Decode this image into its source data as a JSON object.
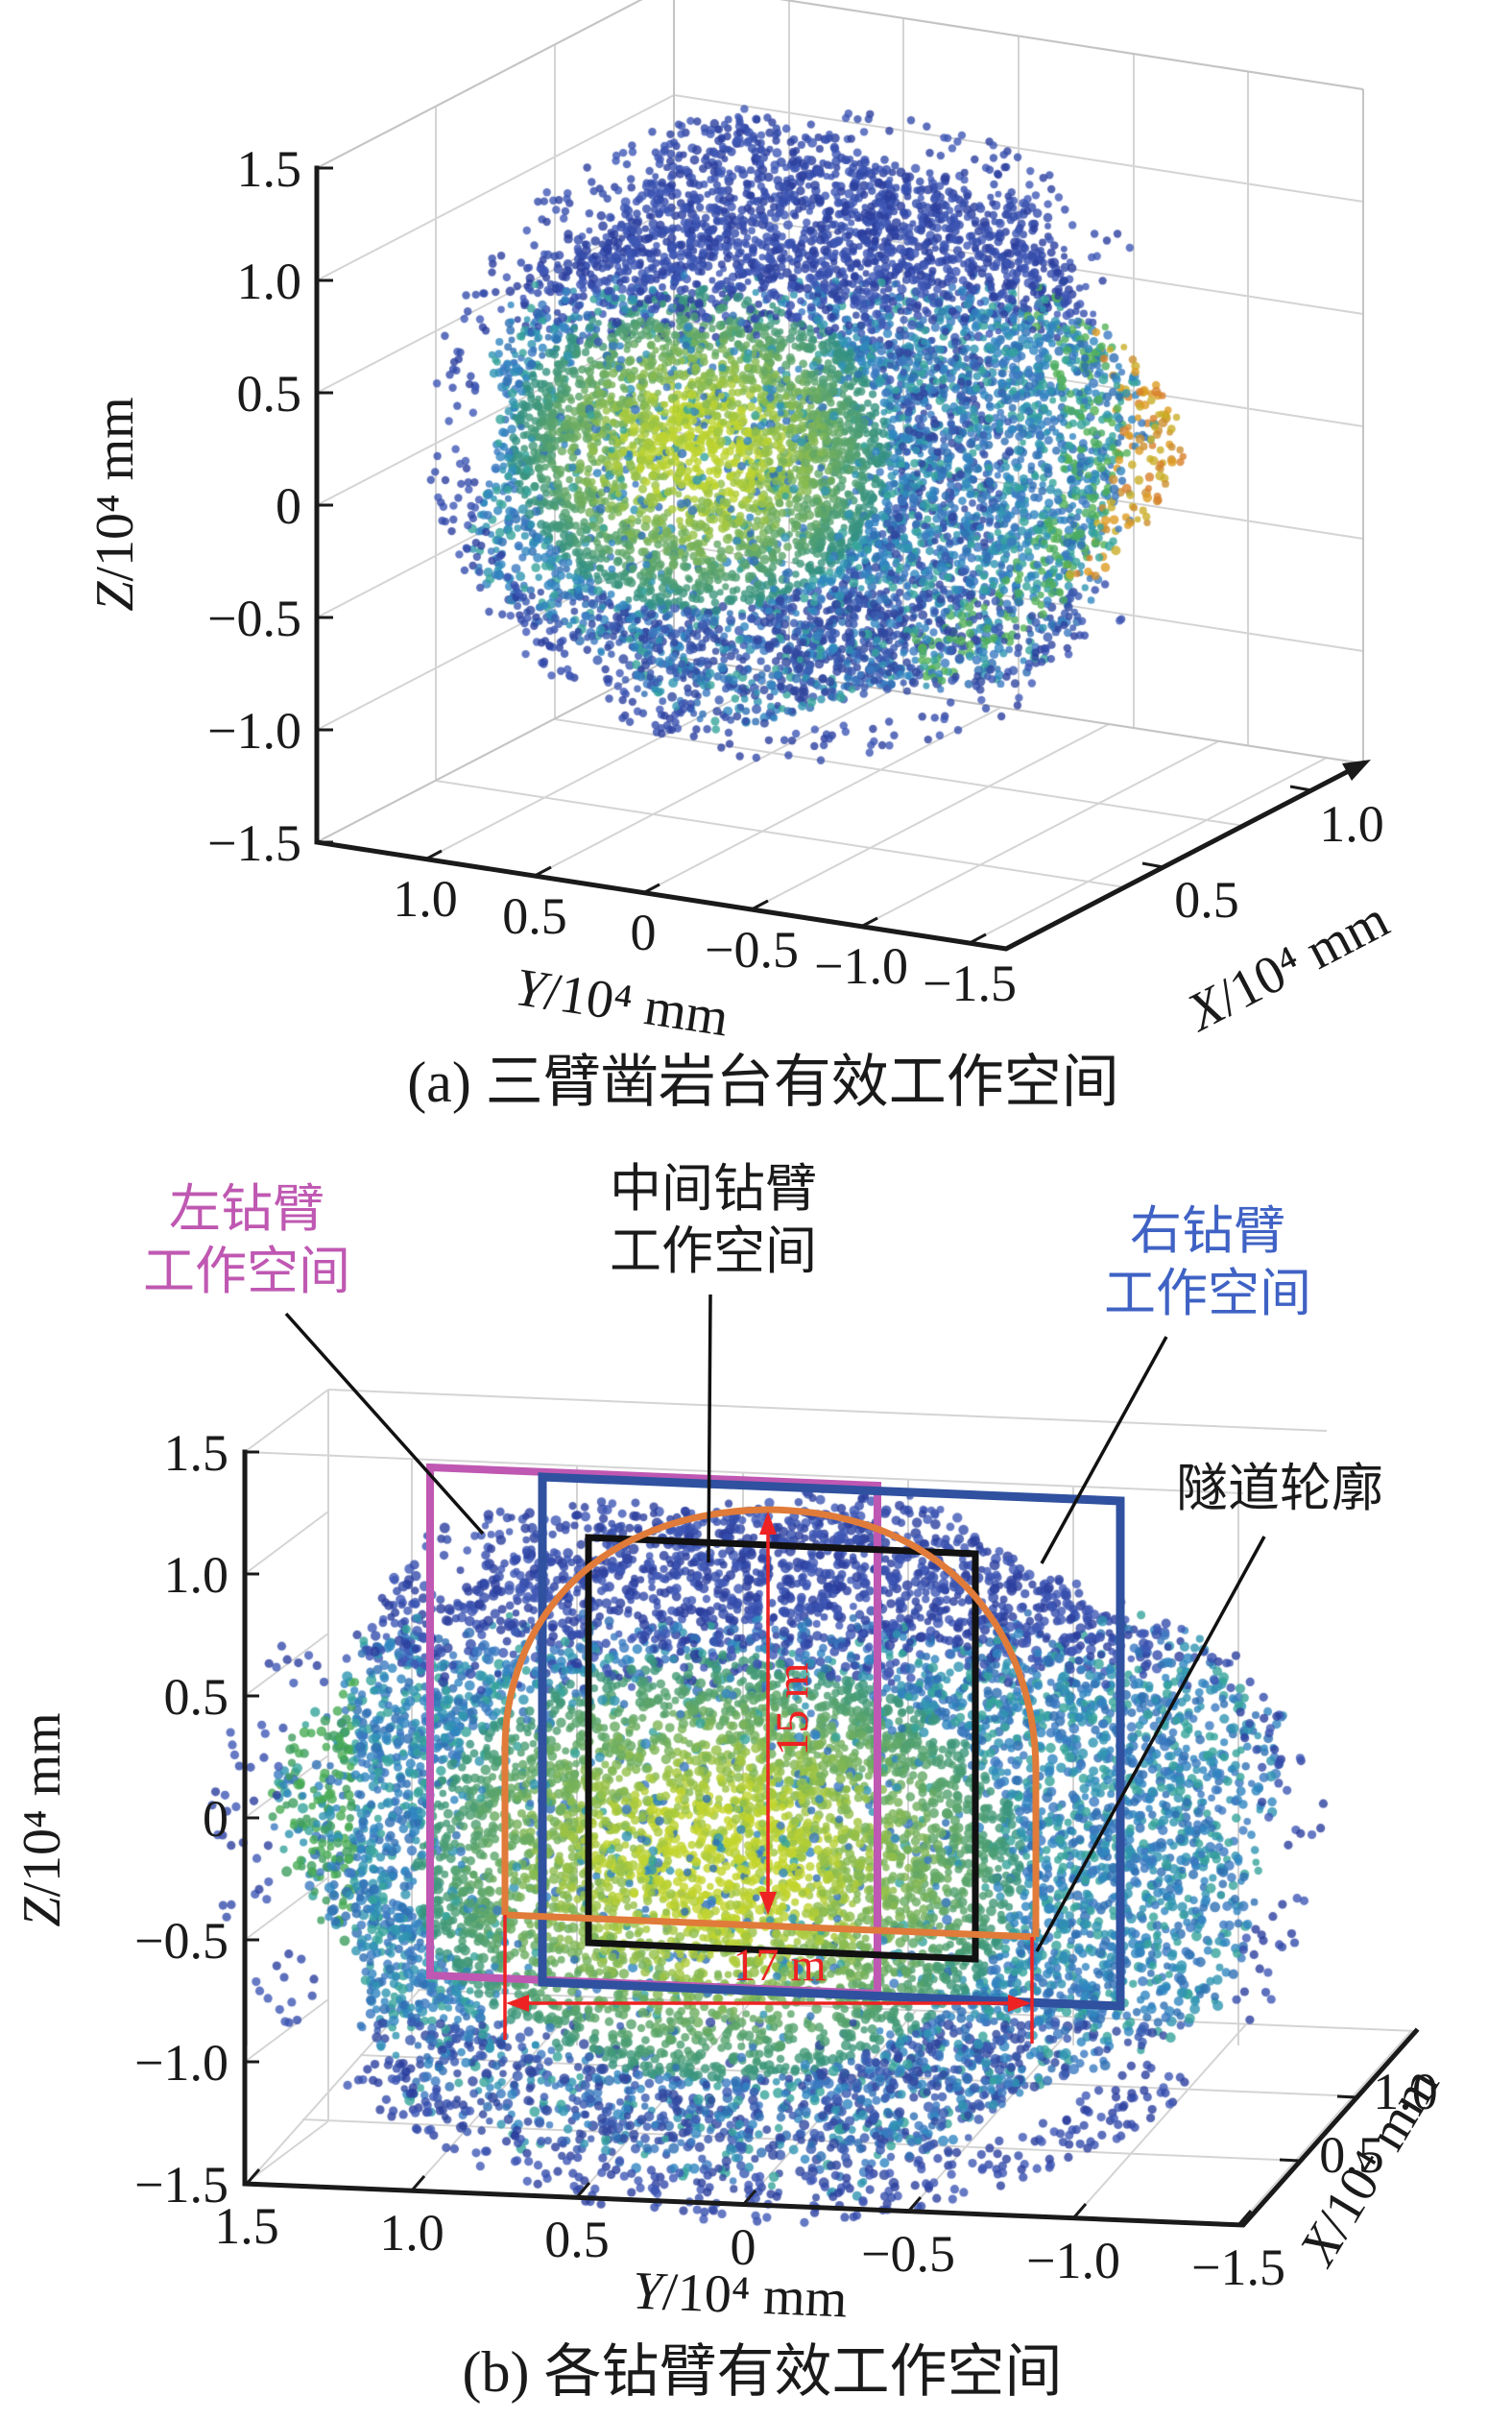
{
  "figure": {
    "panel_a": {
      "caption": "(a) 三臂凿岩台有效工作空间",
      "z_axis": {
        "variable": "Z",
        "unit_suffix": "/10⁴ mm",
        "ticks": [
          "1.5",
          "1.0",
          "0.5",
          "0",
          "−0.5",
          "−1.0",
          "−1.5"
        ]
      },
      "y_axis": {
        "variable": "Y",
        "unit_suffix": "/10⁴ mm",
        "ticks": [
          "1.0",
          "0.5",
          "0",
          "−0.5",
          "−1.0",
          "−1.5"
        ]
      },
      "x_axis": {
        "variable": "X",
        "unit_suffix": "/10⁴ mm",
        "ticks": [
          "0.5",
          "1.0"
        ]
      }
    },
    "panel_b": {
      "caption": "(b) 各钻臂有效工作空间",
      "z_axis": {
        "variable": "Z",
        "unit_suffix": "/10⁴ mm",
        "ticks": [
          "1.5",
          "1.0",
          "0.5",
          "0",
          "−0.5",
          "−1.0",
          "−1.5"
        ]
      },
      "y_axis": {
        "variable": "Y",
        "unit_suffix": "/10⁴ mm",
        "ticks": [
          "1.5",
          "1.0",
          "0.5",
          "0",
          "−0.5",
          "−1.0",
          "−1.5"
        ]
      },
      "x_axis": {
        "variable": "X",
        "unit_suffix": "/10⁴ mm",
        "ticks": [
          "0.5",
          "1.0"
        ]
      },
      "labels": {
        "left_arm_line1": "左钻臂",
        "left_arm_line2": "工作空间",
        "middle_arm_line1": "中间钻臂",
        "middle_arm_line2": "工作空间",
        "right_arm_line1": "右钻臂",
        "right_arm_line2": "工作空间",
        "tunnel_outline": "隧道轮廓",
        "height_dim": "15 m",
        "width_dim": "17 m"
      }
    }
  },
  "colors": {
    "left_arm_workspace": "#bf58b2",
    "middle_arm_workspace": "#111111",
    "right_arm_workspace": "#30519f",
    "right_arm_label_text": "#3f62c4",
    "tunnel_outline": "#e07b3a",
    "dimension_red": "#ee2222",
    "grid_gray": "#d4d4d4"
  },
  "chart_data": [
    {
      "id": "panel_a",
      "type": "scatter",
      "subtype": "3d-point-cloud",
      "title": "(a) 三臂凿岩台有效工作空间",
      "xlabel": "X/10⁴ mm",
      "ylabel": "Y/10⁴ mm",
      "zlabel": "Z/10⁴ mm",
      "xlim": [
        0,
        1.0
      ],
      "ylim": [
        -1.5,
        1.5
      ],
      "zlim": [
        -1.5,
        1.5
      ],
      "x_ticks": [
        0.5,
        1.0
      ],
      "y_ticks": [
        1.0,
        0.5,
        0,
        -0.5,
        -1.0,
        -1.5
      ],
      "z_ticks": [
        1.5,
        1.0,
        0.5,
        0,
        -0.5,
        -1.0,
        -1.5
      ],
      "grid": true,
      "description": "Dense 3-D workspace point cloud of a three-boom rock-drilling jumbo; roughly ellipsoidal blob, dark blue upper band, green/yellow dense core at centre-left, amber-orange fringe on right rim, ragged sparse blue edges",
      "cloud": {
        "points": 8800,
        "outliers": 340,
        "dot_radius": 4.2,
        "alpha": 0.8,
        "seed": 7,
        "palette": {
          "navy": [
            "#2c3e9d",
            "#354cab",
            "#3f58b5"
          ],
          "navy2": [
            "#31479f",
            "#3a5ab0"
          ],
          "teal": [
            "#2e6fb3",
            "#2f95b1",
            "#36a49b",
            "#3b79c0",
            "#2f86c0"
          ],
          "green_lo": "#2f8f86",
          "green_hi": "#bdd32f",
          "orange": [
            "#dd9b22",
            "#d8802b",
            "#c9ae28",
            "#cc8e2e"
          ],
          "edge_green": [
            "#4aab62",
            "#55b158"
          ]
        }
      }
    },
    {
      "id": "panel_b",
      "type": "scatter",
      "subtype": "3d-point-cloud",
      "title": "(b) 各钻臂有效工作空间",
      "xlabel": "X/10⁴ mm",
      "ylabel": "Y/10⁴ mm",
      "zlabel": "Z/10⁴ mm",
      "xlim": [
        0,
        1.0
      ],
      "ylim": [
        -1.5,
        1.5
      ],
      "zlim": [
        -1.5,
        1.5
      ],
      "x_ticks": [
        0.5,
        1.0
      ],
      "y_ticks": [
        1.5,
        1.0,
        0.5,
        0,
        -0.5,
        -1.0,
        -1.5
      ],
      "z_ticks": [
        1.5,
        1.0,
        0.5,
        0,
        -0.5,
        -1.0,
        -1.5
      ],
      "grid": true,
      "description": "Front view of the same workspace cloud with overlaid per-boom workspace rectangles and tunnel profile",
      "annotations": {
        "left_arm_box": {
          "Y_range": [
            0.95,
            -0.41
          ],
          "Z_range": [
            1.47,
            -0.64
          ],
          "color": "#bf58b2"
        },
        "right_arm_box": {
          "Y_range": [
            0.6,
            -1.15
          ],
          "Z_range": [
            1.45,
            -0.65
          ],
          "color": "#30519f"
        },
        "middle_arm_box": {
          "Y_range": [
            0.47,
            -0.7
          ],
          "Z_range": [
            1.15,
            -0.5
          ],
          "color": "#111111"
        },
        "tunnel_profile": {
          "Y_span": [
            0.72,
            -0.89
          ],
          "floor_Z": -0.31,
          "apex_Z": 1.35,
          "color": "#e07b3a"
        },
        "tunnel_height_m": 15,
        "tunnel_width_m": 17
      },
      "cloud": {
        "points": 10200,
        "outliers": 380,
        "dot_radius": 4.6,
        "alpha": 0.8,
        "seed": 21,
        "palette": {
          "navy": [
            "#2c3e9d",
            "#354cab",
            "#3f58b5"
          ],
          "navy2": [
            "#31479f",
            "#3a5ab0"
          ],
          "teal": [
            "#2e6fb3",
            "#2f95b1",
            "#36a49b",
            "#3b79c0",
            "#2f86c0"
          ],
          "green_lo": "#37947f",
          "green_hi": "#c3d52c",
          "orange": [],
          "edge_green": [
            "#3f9e5f",
            "#49ab55"
          ]
        }
      }
    }
  ]
}
